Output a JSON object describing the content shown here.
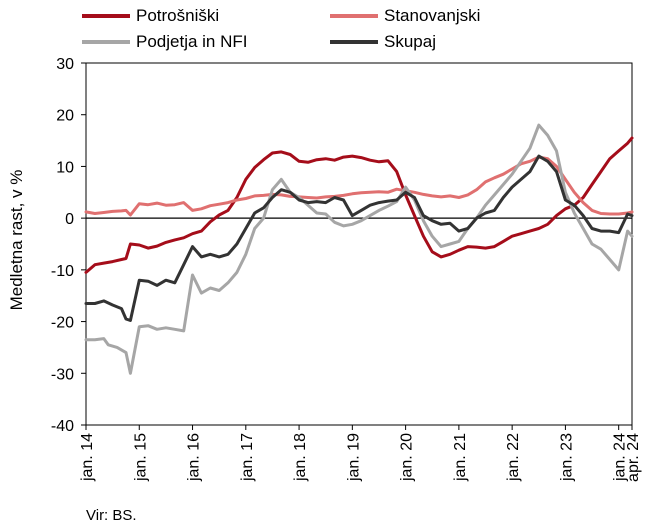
{
  "chart_data": {
    "type": "line",
    "ylabel": "Medletna rast, v %",
    "ylim": [
      -40,
      30
    ],
    "yticks": [
      -40,
      -30,
      -20,
      -10,
      0,
      10,
      20,
      30
    ],
    "xlim": [
      "2014-01",
      "2024-04"
    ],
    "xticks": [
      "2014-01",
      "2015-01",
      "2016-01",
      "2017-01",
      "2018-01",
      "2019-01",
      "2020-01",
      "2021-01",
      "2022-01",
      "2023-01",
      "2024-01",
      "2024-04"
    ],
    "xtick_labels": [
      "jan. 14",
      "jan. 15",
      "jan. 16",
      "jan. 17",
      "jan. 18",
      "jan. 19",
      "jan. 20",
      "jan. 21",
      "jan. 22",
      "jan. 23",
      "jan. 24",
      "apr. 24"
    ],
    "legend_position": "top",
    "grid": false,
    "series": [
      {
        "name": "Potrošniški",
        "color": "#a50d1a",
        "points": [
          [
            "2014-01",
            -10.5
          ],
          [
            "2014-03",
            -9.0
          ],
          [
            "2014-05",
            -8.7
          ],
          [
            "2014-07",
            -8.4
          ],
          [
            "2014-09",
            -8.0
          ],
          [
            "2014-10",
            -7.8
          ],
          [
            "2014-11",
            -5.0
          ],
          [
            "2015-01",
            -5.2
          ],
          [
            "2015-03",
            -5.8
          ],
          [
            "2015-05",
            -5.4
          ],
          [
            "2015-07",
            -4.7
          ],
          [
            "2015-09",
            -4.2
          ],
          [
            "2015-11",
            -3.8
          ],
          [
            "2016-01",
            -3.0
          ],
          [
            "2016-03",
            -2.5
          ],
          [
            "2016-05",
            -0.7
          ],
          [
            "2016-07",
            0.6
          ],
          [
            "2016-09",
            1.5
          ],
          [
            "2016-11",
            4.0
          ],
          [
            "2017-01",
            7.5
          ],
          [
            "2017-03",
            9.8
          ],
          [
            "2017-05",
            11.3
          ],
          [
            "2017-07",
            12.6
          ],
          [
            "2017-09",
            12.8
          ],
          [
            "2017-11",
            12.3
          ],
          [
            "2018-01",
            11.0
          ],
          [
            "2018-03",
            10.8
          ],
          [
            "2018-05",
            11.3
          ],
          [
            "2018-07",
            11.5
          ],
          [
            "2018-09",
            11.2
          ],
          [
            "2018-11",
            11.8
          ],
          [
            "2019-01",
            12.0
          ],
          [
            "2019-03",
            11.7
          ],
          [
            "2019-05",
            11.2
          ],
          [
            "2019-07",
            10.9
          ],
          [
            "2019-09",
            11.1
          ],
          [
            "2019-11",
            9.0
          ],
          [
            "2020-01",
            4.5
          ],
          [
            "2020-03",
            0.5
          ],
          [
            "2020-05",
            -3.5
          ],
          [
            "2020-07",
            -6.5
          ],
          [
            "2020-09",
            -7.5
          ],
          [
            "2020-11",
            -7.0
          ],
          [
            "2021-01",
            -6.2
          ],
          [
            "2021-03",
            -5.5
          ],
          [
            "2021-05",
            -5.6
          ],
          [
            "2021-07",
            -5.8
          ],
          [
            "2021-09",
            -5.5
          ],
          [
            "2021-11",
            -4.5
          ],
          [
            "2022-01",
            -3.5
          ],
          [
            "2022-03",
            -3.0
          ],
          [
            "2022-05",
            -2.5
          ],
          [
            "2022-07",
            -2.0
          ],
          [
            "2022-09",
            -1.2
          ],
          [
            "2022-11",
            0.5
          ],
          [
            "2023-01",
            1.8
          ],
          [
            "2023-03",
            2.5
          ],
          [
            "2023-05",
            4.0
          ],
          [
            "2023-07",
            6.5
          ],
          [
            "2023-09",
            9.0
          ],
          [
            "2023-11",
            11.5
          ],
          [
            "2024-01",
            13.0
          ],
          [
            "2024-03",
            14.5
          ],
          [
            "2024-04",
            15.5
          ]
        ]
      },
      {
        "name": "Stanovanjski",
        "color": "#e07070",
        "points": [
          [
            "2014-01",
            1.2
          ],
          [
            "2014-03",
            0.9
          ],
          [
            "2014-05",
            1.1
          ],
          [
            "2014-07",
            1.3
          ],
          [
            "2014-09",
            1.4
          ],
          [
            "2014-10",
            1.5
          ],
          [
            "2014-11",
            0.6
          ],
          [
            "2015-01",
            2.8
          ],
          [
            "2015-03",
            2.6
          ],
          [
            "2015-05",
            2.9
          ],
          [
            "2015-07",
            2.5
          ],
          [
            "2015-09",
            2.6
          ],
          [
            "2015-11",
            3.0
          ],
          [
            "2016-01",
            1.5
          ],
          [
            "2016-03",
            1.8
          ],
          [
            "2016-05",
            2.4
          ],
          [
            "2016-07",
            2.7
          ],
          [
            "2016-09",
            3.0
          ],
          [
            "2016-11",
            3.5
          ],
          [
            "2017-01",
            3.8
          ],
          [
            "2017-03",
            4.3
          ],
          [
            "2017-05",
            4.4
          ],
          [
            "2017-07",
            4.6
          ],
          [
            "2017-09",
            4.5
          ],
          [
            "2017-11",
            4.2
          ],
          [
            "2018-01",
            4.1
          ],
          [
            "2018-03",
            4.0
          ],
          [
            "2018-05",
            3.9
          ],
          [
            "2018-07",
            4.1
          ],
          [
            "2018-09",
            4.2
          ],
          [
            "2018-11",
            4.4
          ],
          [
            "2019-01",
            4.7
          ],
          [
            "2019-03",
            4.9
          ],
          [
            "2019-05",
            5.0
          ],
          [
            "2019-07",
            5.1
          ],
          [
            "2019-09",
            5.0
          ],
          [
            "2019-11",
            5.6
          ],
          [
            "2020-01",
            5.3
          ],
          [
            "2020-03",
            5.0
          ],
          [
            "2020-05",
            4.6
          ],
          [
            "2020-07",
            4.3
          ],
          [
            "2020-09",
            4.1
          ],
          [
            "2020-11",
            4.3
          ],
          [
            "2021-01",
            4.0
          ],
          [
            "2021-03",
            4.5
          ],
          [
            "2021-05",
            5.5
          ],
          [
            "2021-07",
            7.0
          ],
          [
            "2021-09",
            7.8
          ],
          [
            "2021-11",
            8.5
          ],
          [
            "2022-01",
            9.5
          ],
          [
            "2022-03",
            10.5
          ],
          [
            "2022-05",
            11.0
          ],
          [
            "2022-07",
            11.8
          ],
          [
            "2022-09",
            11.5
          ],
          [
            "2022-11",
            10.0
          ],
          [
            "2023-01",
            7.5
          ],
          [
            "2023-03",
            5.0
          ],
          [
            "2023-05",
            3.0
          ],
          [
            "2023-07",
            1.5
          ],
          [
            "2023-09",
            0.9
          ],
          [
            "2023-11",
            0.8
          ],
          [
            "2024-01",
            0.8
          ],
          [
            "2024-03",
            1.0
          ],
          [
            "2024-04",
            1.2
          ]
        ]
      },
      {
        "name": "Podjetja in NFI",
        "color": "#a6a6a6",
        "points": [
          [
            "2014-01",
            -23.5
          ],
          [
            "2014-03",
            -23.5
          ],
          [
            "2014-05",
            -23.3
          ],
          [
            "2014-06",
            -24.5
          ],
          [
            "2014-08",
            -25.0
          ],
          [
            "2014-10",
            -26.0
          ],
          [
            "2014-11",
            -30.0
          ],
          [
            "2015-01",
            -21.0
          ],
          [
            "2015-03",
            -20.8
          ],
          [
            "2015-05",
            -21.5
          ],
          [
            "2015-07",
            -21.2
          ],
          [
            "2015-09",
            -21.5
          ],
          [
            "2015-11",
            -21.8
          ],
          [
            "2016-01",
            -11.0
          ],
          [
            "2016-03",
            -14.5
          ],
          [
            "2016-05",
            -13.5
          ],
          [
            "2016-07",
            -14.0
          ],
          [
            "2016-09",
            -12.5
          ],
          [
            "2016-11",
            -10.5
          ],
          [
            "2017-01",
            -7.0
          ],
          [
            "2017-03",
            -2.0
          ],
          [
            "2017-05",
            0.0
          ],
          [
            "2017-07",
            5.5
          ],
          [
            "2017-09",
            7.5
          ],
          [
            "2017-11",
            5.0
          ],
          [
            "2018-01",
            4.0
          ],
          [
            "2018-03",
            2.5
          ],
          [
            "2018-05",
            1.0
          ],
          [
            "2018-07",
            0.8
          ],
          [
            "2018-09",
            -0.8
          ],
          [
            "2018-11",
            -1.5
          ],
          [
            "2019-01",
            -1.2
          ],
          [
            "2019-03",
            -0.5
          ],
          [
            "2019-05",
            0.5
          ],
          [
            "2019-07",
            1.5
          ],
          [
            "2019-09",
            2.3
          ],
          [
            "2019-11",
            3.2
          ],
          [
            "2020-01",
            6.0
          ],
          [
            "2020-03",
            3.5
          ],
          [
            "2020-05",
            -0.5
          ],
          [
            "2020-07",
            -3.5
          ],
          [
            "2020-09",
            -5.5
          ],
          [
            "2020-11",
            -5.0
          ],
          [
            "2021-01",
            -4.5
          ],
          [
            "2021-03",
            -2.0
          ],
          [
            "2021-05",
            0.0
          ],
          [
            "2021-07",
            2.5
          ],
          [
            "2021-09",
            4.5
          ],
          [
            "2021-11",
            6.5
          ],
          [
            "2022-01",
            8.5
          ],
          [
            "2022-03",
            11.0
          ],
          [
            "2022-05",
            13.5
          ],
          [
            "2022-07",
            18.0
          ],
          [
            "2022-09",
            16.0
          ],
          [
            "2022-11",
            13.0
          ],
          [
            "2023-01",
            5.0
          ],
          [
            "2023-03",
            1.0
          ],
          [
            "2023-05",
            -2.0
          ],
          [
            "2023-07",
            -5.0
          ],
          [
            "2023-09",
            -6.0
          ],
          [
            "2023-11",
            -8.0
          ],
          [
            "2024-01",
            -10.0
          ],
          [
            "2024-03",
            -2.5
          ],
          [
            "2024-04",
            -3.5
          ]
        ]
      },
      {
        "name": "Skupaj",
        "color": "#333333",
        "points": [
          [
            "2014-01",
            -16.5
          ],
          [
            "2014-03",
            -16.5
          ],
          [
            "2014-05",
            -16.0
          ],
          [
            "2014-07",
            -16.8
          ],
          [
            "2014-09",
            -17.5
          ],
          [
            "2014-10",
            -19.5
          ],
          [
            "2014-11",
            -19.8
          ],
          [
            "2015-01",
            -12.0
          ],
          [
            "2015-03",
            -12.2
          ],
          [
            "2015-05",
            -13.0
          ],
          [
            "2015-07",
            -12.0
          ],
          [
            "2015-09",
            -12.5
          ],
          [
            "2015-11",
            -9.0
          ],
          [
            "2016-01",
            -5.5
          ],
          [
            "2016-03",
            -7.5
          ],
          [
            "2016-05",
            -7.0
          ],
          [
            "2016-07",
            -7.5
          ],
          [
            "2016-09",
            -7.0
          ],
          [
            "2016-11",
            -5.0
          ],
          [
            "2017-01",
            -2.0
          ],
          [
            "2017-03",
            1.0
          ],
          [
            "2017-05",
            2.0
          ],
          [
            "2017-07",
            4.0
          ],
          [
            "2017-09",
            5.5
          ],
          [
            "2017-11",
            5.0
          ],
          [
            "2018-01",
            3.5
          ],
          [
            "2018-03",
            3.0
          ],
          [
            "2018-05",
            3.2
          ],
          [
            "2018-07",
            3.0
          ],
          [
            "2018-09",
            4.0
          ],
          [
            "2018-11",
            3.5
          ],
          [
            "2019-01",
            0.5
          ],
          [
            "2019-03",
            1.5
          ],
          [
            "2019-05",
            2.5
          ],
          [
            "2019-07",
            3.0
          ],
          [
            "2019-09",
            3.3
          ],
          [
            "2019-11",
            3.5
          ],
          [
            "2020-01",
            5.0
          ],
          [
            "2020-03",
            4.0
          ],
          [
            "2020-05",
            0.5
          ],
          [
            "2020-07",
            -0.5
          ],
          [
            "2020-09",
            -1.2
          ],
          [
            "2020-11",
            -1.0
          ],
          [
            "2021-01",
            -2.5
          ],
          [
            "2021-03",
            -2.0
          ],
          [
            "2021-05",
            0.0
          ],
          [
            "2021-07",
            1.0
          ],
          [
            "2021-09",
            1.5
          ],
          [
            "2021-11",
            4.0
          ],
          [
            "2022-01",
            6.0
          ],
          [
            "2022-03",
            7.5
          ],
          [
            "2022-05",
            9.0
          ],
          [
            "2022-07",
            12.0
          ],
          [
            "2022-09",
            11.0
          ],
          [
            "2022-11",
            9.0
          ],
          [
            "2023-01",
            3.5
          ],
          [
            "2023-03",
            2.5
          ],
          [
            "2023-05",
            0.5
          ],
          [
            "2023-07",
            -2.0
          ],
          [
            "2023-09",
            -2.5
          ],
          [
            "2023-11",
            -2.5
          ],
          [
            "2024-01",
            -2.8
          ],
          [
            "2024-03",
            0.8
          ],
          [
            "2024-04",
            0.5
          ]
        ]
      }
    ]
  },
  "source": "Vir: BS."
}
